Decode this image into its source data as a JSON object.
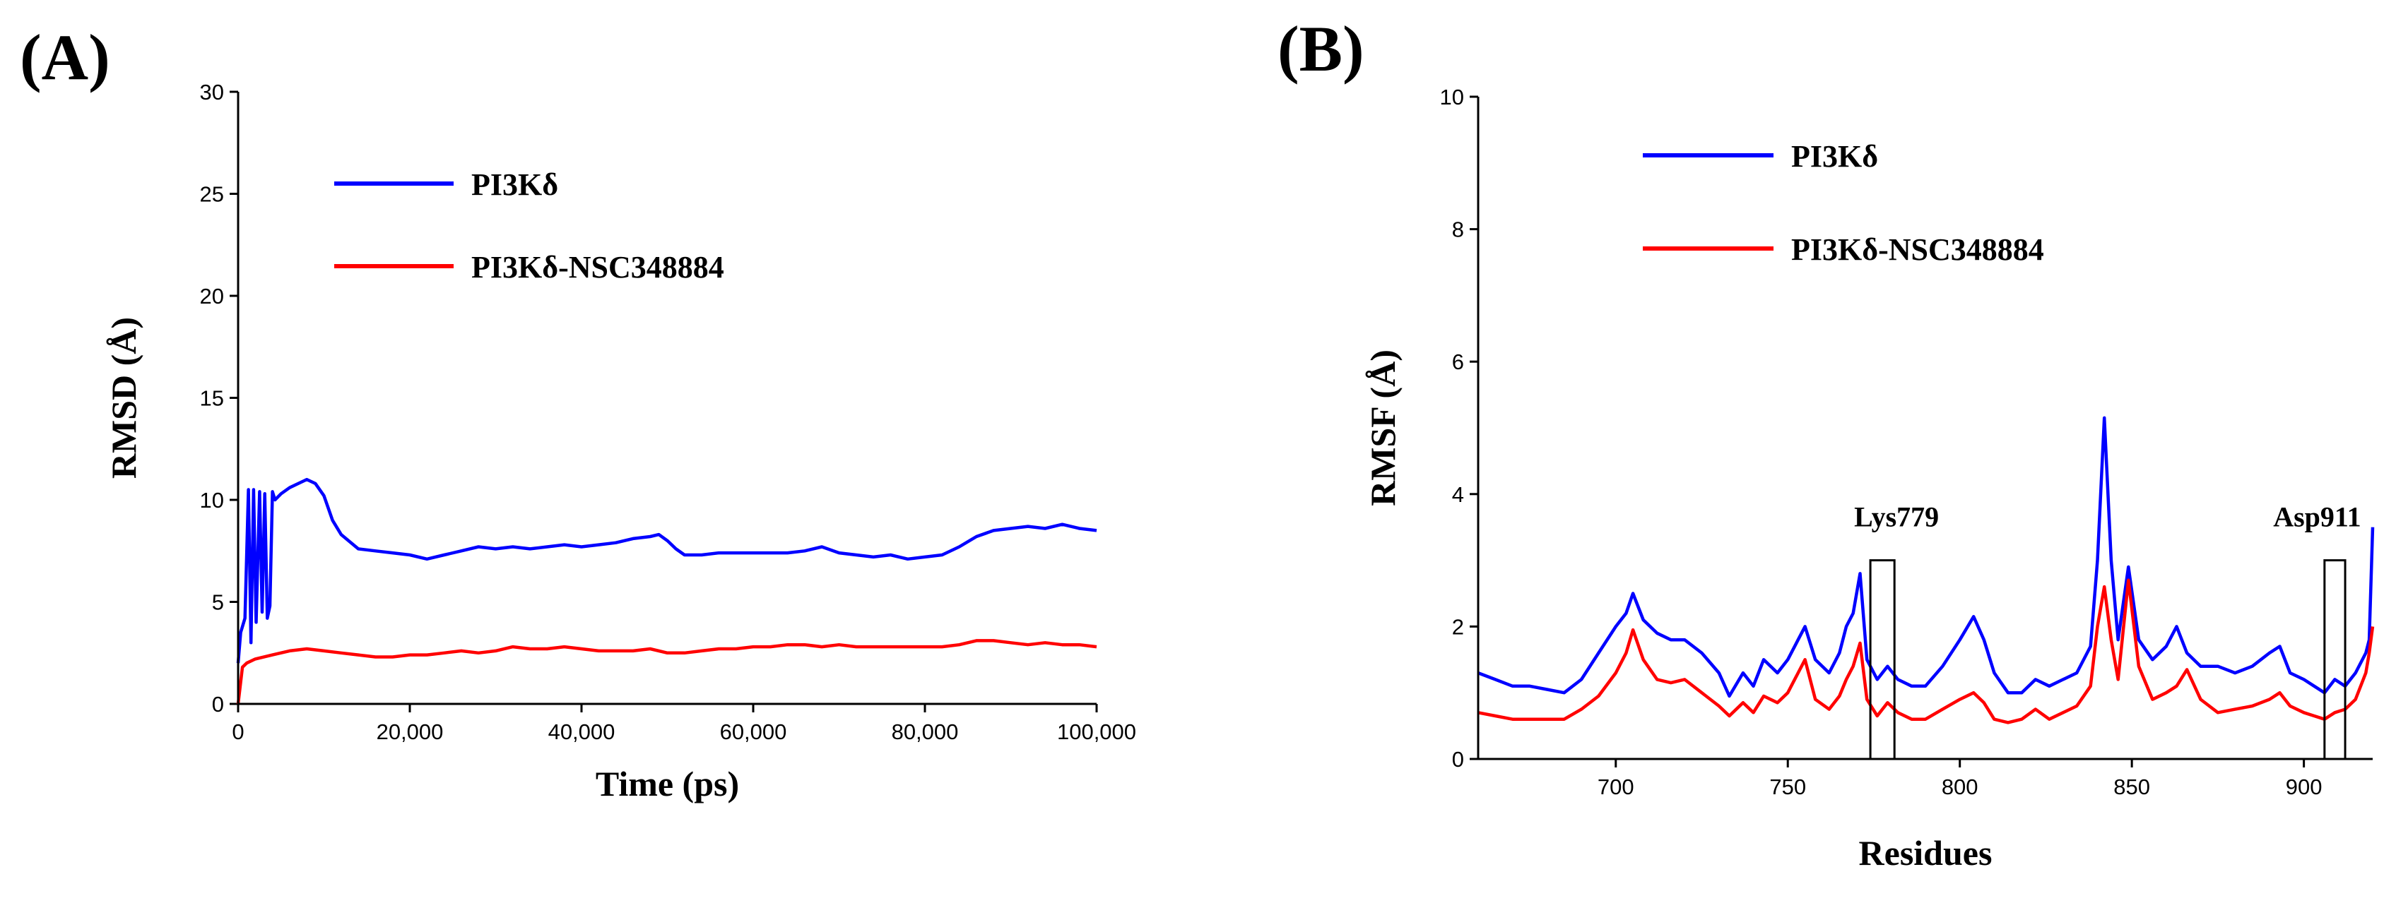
{
  "chart_data": [
    {
      "panel_label": "(A)",
      "type": "line",
      "xlabel": "Time (ps)",
      "ylabel": "RMSD (Å)",
      "xlim": [
        0,
        100000
      ],
      "ylim": [
        0,
        30
      ],
      "x_ticks": [
        0,
        20000,
        40000,
        60000,
        80000,
        100000
      ],
      "x_tick_labels": [
        "0",
        "20,000",
        "40,000",
        "60,000",
        "80,000",
        "100,000"
      ],
      "y_ticks": [
        0,
        5,
        10,
        15,
        20,
        25,
        30
      ],
      "y_tick_labels": [
        "0",
        "5",
        "10",
        "15",
        "20",
        "25",
        "30"
      ],
      "legend_position": "top-left",
      "series": [
        {
          "name": "PI3Kδ",
          "color": "#0000ff",
          "x": [
            0,
            300,
            800,
            1200,
            1500,
            1800,
            2100,
            2500,
            2800,
            3100,
            3400,
            3700,
            4000,
            4300,
            5000,
            6000,
            7000,
            8000,
            9000,
            10000,
            11000,
            12000,
            14000,
            16000,
            18000,
            20000,
            22000,
            24000,
            26000,
            28000,
            30000,
            32000,
            34000,
            36000,
            38000,
            40000,
            42000,
            44000,
            46000,
            48000,
            49000,
            50000,
            51000,
            52000,
            54000,
            56000,
            58000,
            60000,
            62000,
            64000,
            66000,
            68000,
            70000,
            72000,
            74000,
            76000,
            78000,
            80000,
            82000,
            84000,
            86000,
            88000,
            90000,
            92000,
            94000,
            96000,
            98000,
            100000
          ],
          "values": [
            2.0,
            3.5,
            4.2,
            10.5,
            3.0,
            10.5,
            4.0,
            10.4,
            4.5,
            10.3,
            4.2,
            4.8,
            10.4,
            10.0,
            10.3,
            10.6,
            10.8,
            11.0,
            10.8,
            10.2,
            9.0,
            8.3,
            7.6,
            7.5,
            7.4,
            7.3,
            7.1,
            7.3,
            7.5,
            7.7,
            7.6,
            7.7,
            7.6,
            7.7,
            7.8,
            7.7,
            7.8,
            7.9,
            8.1,
            8.2,
            8.3,
            8.0,
            7.6,
            7.3,
            7.3,
            7.4,
            7.4,
            7.4,
            7.4,
            7.4,
            7.5,
            7.7,
            7.4,
            7.3,
            7.2,
            7.3,
            7.1,
            7.2,
            7.3,
            7.7,
            8.2,
            8.5,
            8.6,
            8.7,
            8.6,
            8.8,
            8.6,
            8.5
          ]
        },
        {
          "name": "PI3Kδ-NSC348884",
          "color": "#ff0000",
          "x": [
            0,
            500,
            1000,
            2000,
            4000,
            6000,
            8000,
            10000,
            12000,
            14000,
            16000,
            18000,
            20000,
            22000,
            24000,
            26000,
            28000,
            30000,
            32000,
            34000,
            36000,
            38000,
            40000,
            42000,
            44000,
            46000,
            48000,
            50000,
            52000,
            54000,
            56000,
            58000,
            60000,
            62000,
            64000,
            66000,
            68000,
            70000,
            72000,
            74000,
            76000,
            78000,
            80000,
            82000,
            84000,
            86000,
            88000,
            90000,
            92000,
            94000,
            96000,
            98000,
            100000
          ],
          "values": [
            0.0,
            1.8,
            2.0,
            2.2,
            2.4,
            2.6,
            2.7,
            2.6,
            2.5,
            2.4,
            2.3,
            2.3,
            2.4,
            2.4,
            2.5,
            2.6,
            2.5,
            2.6,
            2.8,
            2.7,
            2.7,
            2.8,
            2.7,
            2.6,
            2.6,
            2.6,
            2.7,
            2.5,
            2.5,
            2.6,
            2.7,
            2.7,
            2.8,
            2.8,
            2.9,
            2.9,
            2.8,
            2.9,
            2.8,
            2.8,
            2.8,
            2.8,
            2.8,
            2.8,
            2.9,
            3.1,
            3.1,
            3.0,
            2.9,
            3.0,
            2.9,
            2.9,
            2.8
          ]
        }
      ]
    },
    {
      "panel_label": "(B)",
      "type": "line",
      "xlabel": "Residues",
      "ylabel": "RMSF (Å)",
      "xlim": [
        660,
        920
      ],
      "ylim": [
        0,
        10
      ],
      "x_ticks": [
        700,
        750,
        800,
        850,
        900
      ],
      "x_tick_labels": [
        "700",
        "750",
        "800",
        "850",
        "900"
      ],
      "y_ticks": [
        0,
        2,
        4,
        6,
        8,
        10
      ],
      "y_tick_labels": [
        "0",
        "2",
        "4",
        "6",
        "8",
        "10"
      ],
      "legend_position": "top-left",
      "series": [
        {
          "name": "PI3Kδ",
          "color": "#0000ff",
          "x": [
            660,
            665,
            670,
            675,
            680,
            685,
            690,
            695,
            700,
            703,
            705,
            708,
            712,
            716,
            720,
            725,
            730,
            733,
            737,
            740,
            743,
            747,
            750,
            753,
            755,
            758,
            762,
            765,
            767,
            769,
            771,
            773,
            776,
            779,
            782,
            786,
            790,
            795,
            800,
            804,
            807,
            810,
            814,
            818,
            822,
            826,
            830,
            834,
            838,
            840,
            842,
            844,
            846,
            849,
            852,
            856,
            860,
            863,
            866,
            870,
            875,
            880,
            885,
            890,
            893,
            896,
            900,
            903,
            906,
            909,
            912,
            915,
            918,
            919,
            920
          ],
          "values": [
            1.3,
            1.2,
            1.1,
            1.1,
            1.05,
            1.0,
            1.2,
            1.6,
            2.0,
            2.2,
            2.5,
            2.1,
            1.9,
            1.8,
            1.8,
            1.6,
            1.3,
            0.95,
            1.3,
            1.1,
            1.5,
            1.3,
            1.5,
            1.8,
            2.0,
            1.5,
            1.3,
            1.6,
            2.0,
            2.2,
            2.8,
            1.5,
            1.2,
            1.4,
            1.2,
            1.1,
            1.1,
            1.4,
            1.8,
            2.15,
            1.8,
            1.3,
            1.0,
            1.0,
            1.2,
            1.1,
            1.2,
            1.3,
            1.7,
            3.0,
            5.15,
            3.0,
            1.8,
            2.9,
            1.8,
            1.5,
            1.7,
            2.0,
            1.6,
            1.4,
            1.4,
            1.3,
            1.4,
            1.6,
            1.7,
            1.3,
            1.2,
            1.1,
            1.0,
            1.2,
            1.1,
            1.3,
            1.6,
            1.8,
            3.5
          ]
        },
        {
          "name": "PI3Kδ-NSC348884",
          "color": "#ff0000",
          "x": [
            660,
            665,
            670,
            675,
            680,
            685,
            690,
            695,
            700,
            703,
            705,
            708,
            712,
            716,
            720,
            725,
            730,
            733,
            737,
            740,
            743,
            747,
            750,
            753,
            755,
            758,
            762,
            765,
            767,
            769,
            771,
            773,
            776,
            779,
            782,
            786,
            790,
            795,
            800,
            804,
            807,
            810,
            814,
            818,
            822,
            826,
            830,
            834,
            838,
            840,
            842,
            844,
            846,
            849,
            852,
            856,
            860,
            863,
            866,
            870,
            875,
            880,
            885,
            890,
            893,
            896,
            900,
            903,
            906,
            909,
            912,
            915,
            918,
            919,
            920
          ],
          "values": [
            0.7,
            0.65,
            0.6,
            0.6,
            0.6,
            0.6,
            0.75,
            0.95,
            1.3,
            1.6,
            1.95,
            1.5,
            1.2,
            1.15,
            1.2,
            1.0,
            0.8,
            0.65,
            0.85,
            0.7,
            0.95,
            0.85,
            1.0,
            1.3,
            1.5,
            0.9,
            0.75,
            0.95,
            1.2,
            1.4,
            1.75,
            0.9,
            0.65,
            0.85,
            0.7,
            0.6,
            0.6,
            0.75,
            0.9,
            1.0,
            0.85,
            0.6,
            0.55,
            0.6,
            0.75,
            0.6,
            0.7,
            0.8,
            1.1,
            2.0,
            2.6,
            1.8,
            1.2,
            2.7,
            1.4,
            0.9,
            1.0,
            1.1,
            1.35,
            0.9,
            0.7,
            0.75,
            0.8,
            0.9,
            1.0,
            0.8,
            0.7,
            0.65,
            0.6,
            0.7,
            0.75,
            0.9,
            1.3,
            1.6,
            2.0
          ]
        }
      ],
      "annotations": [
        {
          "text": "Lys779",
          "x_range": [
            774,
            781
          ],
          "y_range": [
            0,
            3.0
          ]
        },
        {
          "text": "Asp911",
          "x_range": [
            906,
            912
          ],
          "y_range": [
            0,
            3.0
          ]
        }
      ]
    }
  ]
}
